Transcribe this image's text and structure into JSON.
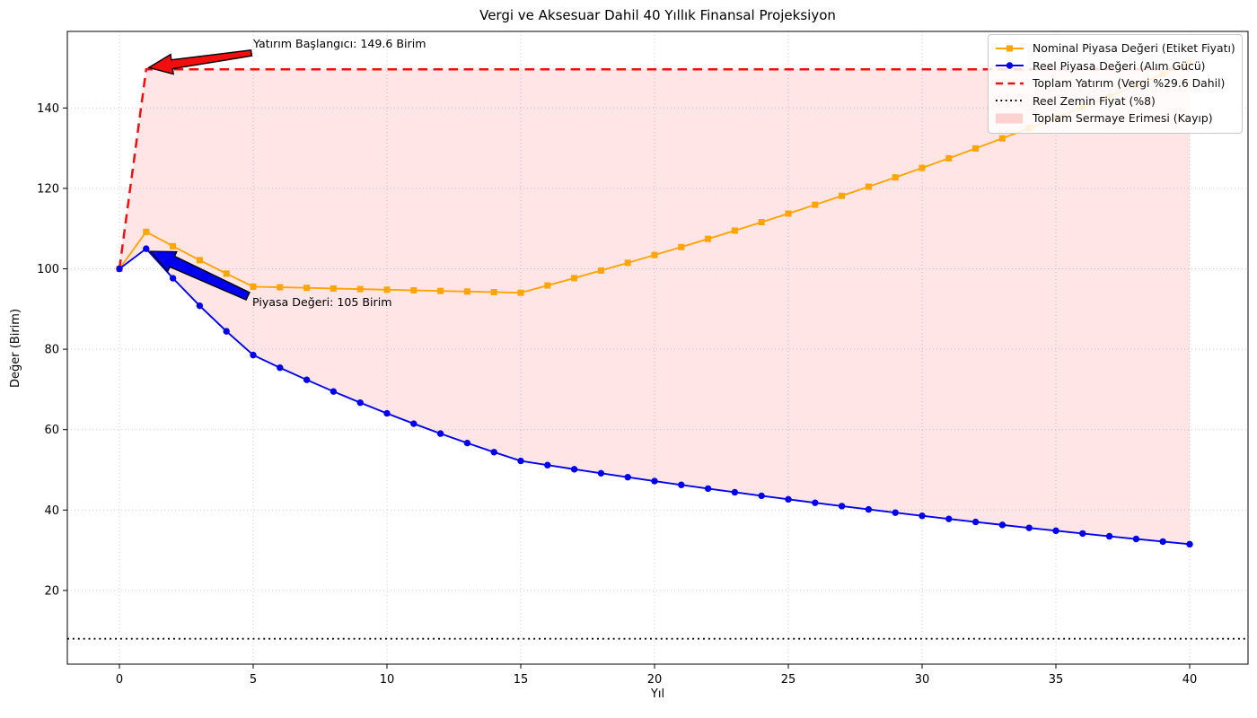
{
  "title": "Vergi ve Aksesuar Dahil 40 Yıllık Finansal Projeksiyon",
  "xlabel": "Yıl",
  "ylabel": "Değer (Birim)",
  "colors": {
    "nominal": "#FFA500",
    "reel": "#0000EE",
    "investment": "#F10E0E",
    "floor": "#000000",
    "loss_fill": "rgba(255,0,0,0.10)",
    "grid": "#bfbfbf",
    "spine": "#000000",
    "legend_border": "#c9c9c9"
  },
  "axes": {
    "x_ticks": [
      0,
      5,
      10,
      15,
      20,
      25,
      30,
      35,
      40
    ],
    "y_ticks": [
      20,
      40,
      60,
      80,
      100,
      120,
      140
    ],
    "xlim": [
      -1.95,
      42.2
    ],
    "ylim": [
      1.5,
      159
    ]
  },
  "legend": {
    "items": [
      {
        "label": "Nominal Piyasa Değeri (Etiket Fiyatı)",
        "style": "line-square",
        "color": "#FFA500"
      },
      {
        "label": "Reel Piyasa Değeri (Alım Gücü)",
        "style": "line-circle",
        "color": "#0000EE"
      },
      {
        "label": "Toplam Yatırım (Vergi %29.6 Dahil)",
        "style": "dashed",
        "color": "#F10E0E"
      },
      {
        "label": "Reel Zemin Fiyat (%8)",
        "style": "dotted",
        "color": "#000000"
      },
      {
        "label": "Toplam Sermaye Erimesi (Kayıp)",
        "style": "patch",
        "color": "rgba(255,0,0,0.16)"
      }
    ]
  },
  "annotations": {
    "investment_start": {
      "text": "Yatırım Başlangıcı: 149.6 Birim",
      "target_year": 1,
      "target_value": 149.6,
      "arrow_color": "#F10E0E"
    },
    "market_value": {
      "text": "Piyasa Değeri: 105 Birim",
      "target_year": 1,
      "target_value": 105,
      "arrow_color": "#0000EE"
    }
  },
  "chart_data": {
    "type": "line",
    "title": "Vergi ve Aksesuar Dahil 40 Yıllık Finansal Projeksiyon",
    "xlabel": "Yıl",
    "ylabel": "Değer (Birim)",
    "xlim": [
      -1.95,
      42.2
    ],
    "ylim": [
      1.5,
      159
    ],
    "grid": true,
    "legend_position": "upper right",
    "x": [
      0,
      1,
      2,
      3,
      4,
      5,
      6,
      7,
      8,
      9,
      10,
      11,
      12,
      13,
      14,
      15,
      16,
      17,
      18,
      19,
      20,
      21,
      22,
      23,
      24,
      25,
      26,
      27,
      28,
      29,
      30,
      31,
      32,
      33,
      34,
      35,
      36,
      37,
      38,
      39,
      40
    ],
    "series": [
      {
        "name": "Nominal Piyasa Değeri (Etiket Fiyatı)",
        "style": "line-square",
        "values": [
          100,
          109.2,
          105.62,
          102.15,
          98.8,
          95.56,
          95.41,
          95.26,
          95.1,
          94.95,
          94.8,
          94.65,
          94.5,
          94.35,
          94.2,
          94.04,
          95.85,
          97.69,
          99.57,
          101.48,
          103.43,
          105.41,
          107.44,
          109.5,
          111.6,
          113.74,
          115.93,
          118.15,
          120.42,
          122.73,
          125.09,
          127.49,
          129.94,
          132.44,
          134.98,
          137.57,
          140.21,
          142.9,
          145.65,
          148.44,
          151.29
        ]
      },
      {
        "name": "Reel Piyasa Değeri (Alım Gücü)",
        "style": "line-circle",
        "values": [
          100,
          105,
          97.65,
          90.81,
          84.46,
          78.55,
          75.4,
          72.39,
          69.49,
          66.71,
          64.04,
          61.48,
          59.02,
          56.66,
          54.4,
          52.22,
          51.18,
          50.15,
          49.15,
          48.17,
          47.2,
          46.26,
          45.33,
          44.43,
          43.54,
          42.67,
          41.81,
          40.98,
          40.16,
          39.35,
          38.57,
          37.8,
          37.04,
          36.3,
          35.57,
          34.86,
          34.17,
          33.48,
          32.81,
          32.16,
          31.51
        ]
      },
      {
        "name": "Toplam Yatırım (Vergi %29.6 Dahil)",
        "style": "dashed",
        "x": [
          0,
          1,
          40
        ],
        "values": [
          100,
          149.6,
          149.6
        ]
      },
      {
        "name": "Reel Zemin Fiyat (%8)",
        "style": "dotted",
        "x": [
          -1.95,
          42.2
        ],
        "values": [
          8,
          8
        ]
      }
    ],
    "fill_between": {
      "label": "Toplam Sermaye Erimesi (Kayıp)",
      "upper": "Toplam Yatırım (Vergi %29.6 Dahil)",
      "lower": "Reel Piyasa Değeri (Alım Gücü)"
    }
  }
}
